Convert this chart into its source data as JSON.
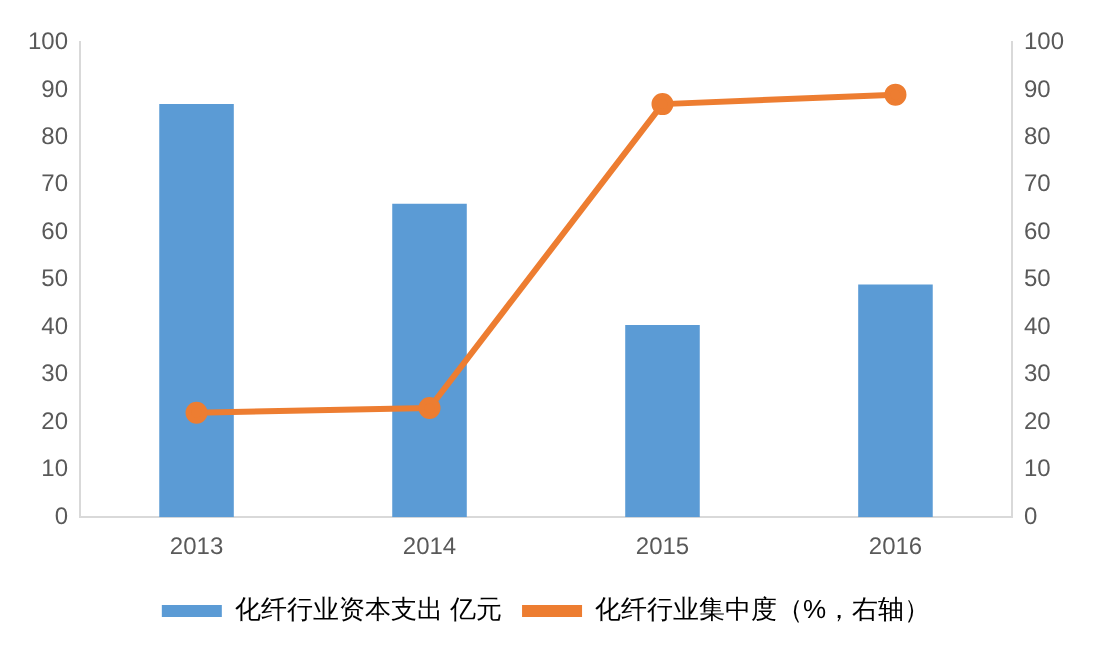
{
  "chart_data": {
    "type": "bar",
    "categories": [
      "2013",
      "2014",
      "2015",
      "2016"
    ],
    "series": [
      {
        "name": "化纤行业资本支出 亿元",
        "color": "#5b9bd5",
        "values": [
          87,
          66,
          40.5,
          49
        ]
      },
      {
        "name": "化纤行业集中度（%，右轴）",
        "type": "line",
        "axis": "y2",
        "color": "#ed7d31",
        "values": [
          22,
          23,
          87,
          89
        ]
      }
    ],
    "ylim": [
      0,
      100
    ],
    "yticks": [
      0,
      10,
      20,
      30,
      40,
      50,
      60,
      70,
      80,
      90,
      100
    ],
    "y2lim": [
      0,
      100
    ],
    "y2ticks": [
      0,
      10,
      20,
      30,
      40,
      50,
      60,
      70,
      80,
      90,
      100
    ],
    "grid": false,
    "legend": "bottom",
    "marker": "circle",
    "line_style": "solid"
  }
}
